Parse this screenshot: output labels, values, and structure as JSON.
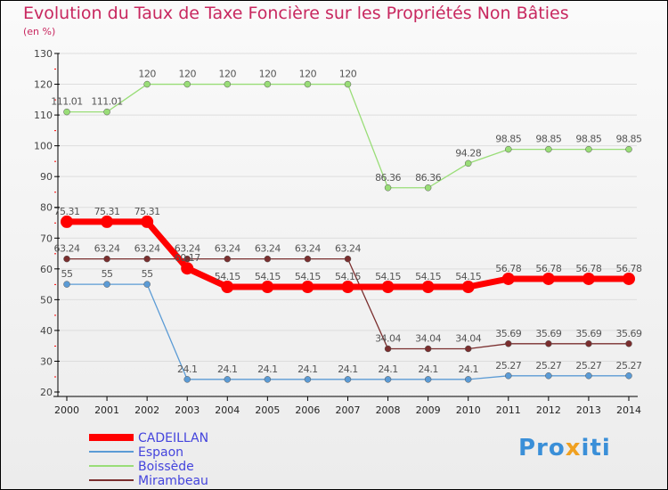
{
  "chart_data": {
    "type": "line",
    "title": "Evolution du Taux de Taxe Foncière sur les Propriétés Non Bâties",
    "subtitle": "(en %)",
    "xlabel": "",
    "ylabel": "",
    "ylim": [
      20,
      130
    ],
    "yticks": [
      20,
      30,
      40,
      50,
      60,
      70,
      80,
      90,
      100,
      110,
      120,
      130
    ],
    "categories": [
      "2000",
      "2001",
      "2002",
      "2003",
      "2004",
      "2005",
      "2006",
      "2007",
      "2008",
      "2009",
      "2010",
      "2011",
      "2012",
      "2013",
      "2014"
    ],
    "series": [
      {
        "name": "CADEILLAN",
        "color": "#ff0000",
        "values": [
          75.31,
          75.31,
          75.31,
          60.17,
          54.15,
          54.15,
          54.15,
          54.15,
          54.15,
          54.15,
          54.15,
          56.78,
          56.78,
          56.78,
          56.78
        ]
      },
      {
        "name": "Espaon",
        "color": "#5b9bd5",
        "values": [
          55,
          55,
          55,
          24.1,
          24.1,
          24.1,
          24.1,
          24.1,
          24.1,
          24.1,
          24.1,
          25.27,
          25.27,
          25.27,
          25.27
        ]
      },
      {
        "name": "Boissède",
        "color": "#99dd77",
        "values": [
          111.01,
          111.01,
          120,
          120,
          120,
          120,
          120,
          120,
          86.36,
          86.36,
          94.28,
          98.85,
          98.85,
          98.85,
          98.85
        ]
      },
      {
        "name": "Mirambeau",
        "color": "#7a2e2e",
        "values": [
          63.24,
          63.24,
          63.24,
          63.24,
          63.24,
          63.24,
          63.24,
          63.24,
          34.04,
          34.04,
          34.04,
          35.69,
          35.69,
          35.69,
          35.69
        ]
      }
    ],
    "legend_position": "bottom-left",
    "grid": true
  },
  "logo": "Proxiti"
}
